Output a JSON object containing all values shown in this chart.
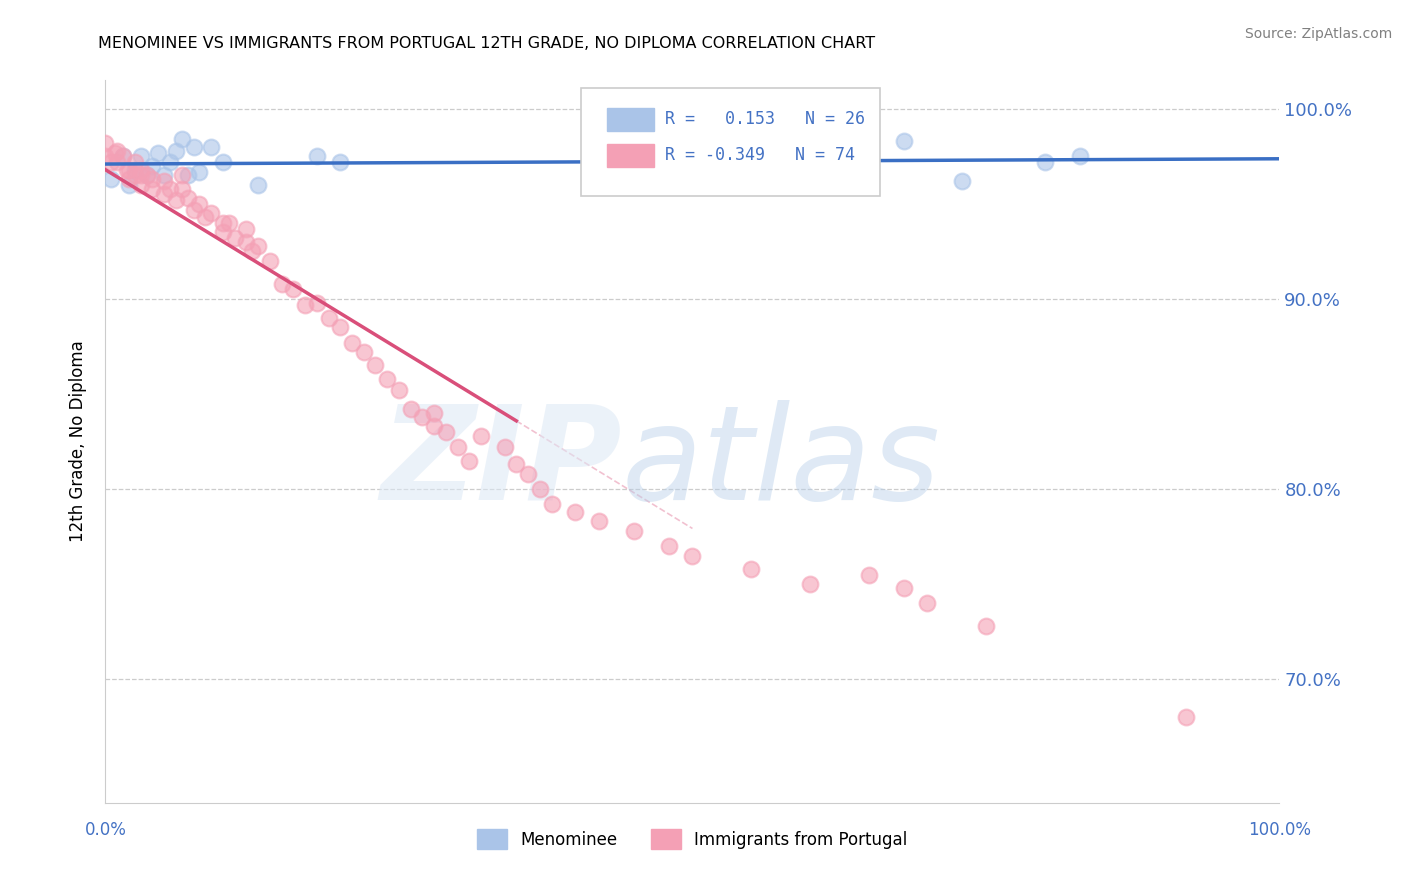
{
  "title": "MENOMINEE VS IMMIGRANTS FROM PORTUGAL 12TH GRADE, NO DIPLOMA CORRELATION CHART",
  "source": "Source: ZipAtlas.com",
  "ylabel": "12th Grade, No Diploma",
  "xlim": [
    0.0,
    1.0
  ],
  "ylim": [
    0.635,
    1.015
  ],
  "yticks": [
    0.7,
    0.8,
    0.9,
    1.0
  ],
  "ytick_labels": [
    "70.0%",
    "80.0%",
    "90.0%",
    "100.0%"
  ],
  "r_menominee": "0.153",
  "n_menominee": "26",
  "r_portugal": "-0.349",
  "n_portugal": "74",
  "menominee_color": "#aac4e8",
  "portugal_color": "#f4a0b5",
  "trendline_menominee_color": "#3a6fc4",
  "trendline_portugal_color": "#d94f7a",
  "menominee_x": [
    0.005,
    0.015,
    0.02,
    0.025,
    0.03,
    0.035,
    0.04,
    0.045,
    0.05,
    0.055,
    0.06,
    0.065,
    0.07,
    0.075,
    0.08,
    0.09,
    0.1,
    0.13,
    0.18,
    0.2,
    0.5,
    0.62,
    0.68,
    0.73,
    0.8,
    0.83
  ],
  "menominee_y": [
    0.963,
    0.975,
    0.96,
    0.968,
    0.975,
    0.965,
    0.97,
    0.977,
    0.965,
    0.972,
    0.978,
    0.984,
    0.965,
    0.98,
    0.967,
    0.98,
    0.972,
    0.96,
    0.975,
    0.972,
    0.975,
    0.97,
    0.983,
    0.962,
    0.972,
    0.975
  ],
  "portugal_x": [
    0.0,
    0.0,
    0.005,
    0.008,
    0.01,
    0.01,
    0.015,
    0.018,
    0.02,
    0.02,
    0.025,
    0.025,
    0.03,
    0.03,
    0.03,
    0.035,
    0.04,
    0.04,
    0.05,
    0.05,
    0.055,
    0.06,
    0.065,
    0.065,
    0.07,
    0.075,
    0.08,
    0.085,
    0.09,
    0.1,
    0.1,
    0.105,
    0.11,
    0.12,
    0.12,
    0.125,
    0.13,
    0.14,
    0.15,
    0.16,
    0.17,
    0.18,
    0.19,
    0.2,
    0.21,
    0.22,
    0.23,
    0.24,
    0.25,
    0.26,
    0.27,
    0.28,
    0.28,
    0.29,
    0.3,
    0.31,
    0.32,
    0.34,
    0.35,
    0.36,
    0.37,
    0.38,
    0.4,
    0.42,
    0.45,
    0.48,
    0.5,
    0.55,
    0.6,
    0.65,
    0.68,
    0.7,
    0.75,
    0.92
  ],
  "portugal_y": [
    0.975,
    0.982,
    0.972,
    0.977,
    0.972,
    0.978,
    0.975,
    0.968,
    0.963,
    0.968,
    0.965,
    0.972,
    0.965,
    0.968,
    0.96,
    0.965,
    0.963,
    0.958,
    0.962,
    0.955,
    0.958,
    0.952,
    0.958,
    0.965,
    0.953,
    0.947,
    0.95,
    0.943,
    0.945,
    0.94,
    0.935,
    0.94,
    0.932,
    0.93,
    0.937,
    0.925,
    0.928,
    0.92,
    0.908,
    0.905,
    0.897,
    0.898,
    0.89,
    0.885,
    0.877,
    0.872,
    0.865,
    0.858,
    0.852,
    0.842,
    0.838,
    0.833,
    0.84,
    0.83,
    0.822,
    0.815,
    0.828,
    0.822,
    0.813,
    0.808,
    0.8,
    0.792,
    0.788,
    0.783,
    0.778,
    0.77,
    0.765,
    0.758,
    0.75,
    0.755,
    0.748,
    0.74,
    0.728,
    0.68
  ],
  "portugal_trendline_end_solid": 0.35,
  "portugal_trendline_end_dash": 0.5
}
